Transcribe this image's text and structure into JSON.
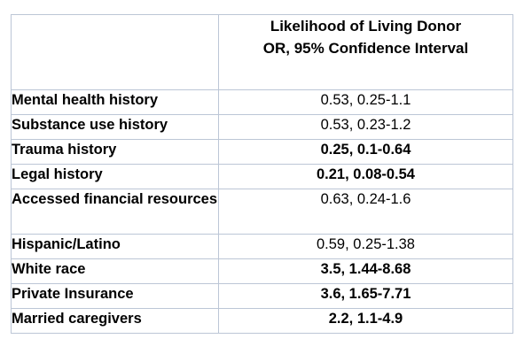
{
  "table": {
    "header": {
      "line1": "Likelihood of Living Donor",
      "line2": "OR, 95% Confidence Interval"
    },
    "rows": [
      {
        "label": "Mental health history",
        "value": "0.53, 0.25-1.1",
        "bold": false
      },
      {
        "label": "Substance use history",
        "value": "0.53, 0.23-1.2",
        "bold": false
      },
      {
        "label": "Trauma history",
        "value": "0.25, 0.1-0.64",
        "bold": true
      },
      {
        "label": "Legal history",
        "value": "0.21, 0.08-0.54",
        "bold": true
      },
      {
        "label": "Accessed financial resources",
        "value": "0.63, 0.24-1.6",
        "bold": false
      },
      {
        "label": "Hispanic/Latino",
        "value": "0.59, 0.25-1.38",
        "bold": false
      },
      {
        "label": "White race",
        "value": "3.5, 1.44-8.68",
        "bold": true
      },
      {
        "label": "Private Insurance",
        "value": "3.6, 1.65-7.71",
        "bold": true
      },
      {
        "label": "Married caregivers",
        "value": "2.2, 1.1-4.9",
        "bold": true
      }
    ]
  }
}
